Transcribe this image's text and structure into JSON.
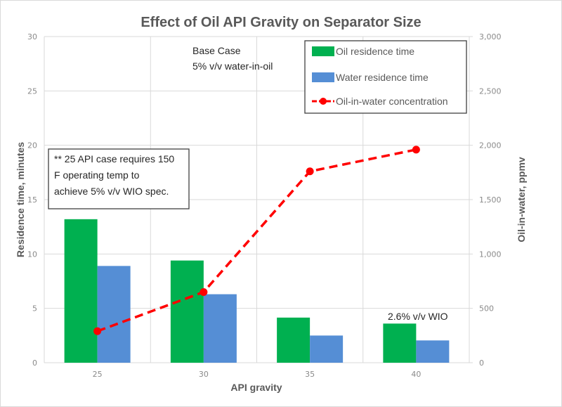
{
  "chart_data": {
    "type": "bar",
    "title": "Effect of Oil API Gravity on Separator Size",
    "xlabel": "API gravity",
    "ylabel": "Residence time, minutes",
    "y2label": "Oil-in-water, ppmv",
    "categories": [
      "25",
      "30",
      "35",
      "40"
    ],
    "ylim": [
      0,
      30
    ],
    "yticks": [
      "0",
      "5",
      "10",
      "15",
      "20",
      "25",
      "30"
    ],
    "y2lim": [
      0,
      3000
    ],
    "y2ticks": [
      "0",
      "500",
      "1,000",
      "1,500",
      "2,000",
      "2,500",
      "3,000"
    ],
    "grid": true,
    "legend_position": "top-right",
    "series": [
      {
        "name": "Oil residence time",
        "type": "bar",
        "axis": "left",
        "color": "#00b050",
        "values": [
          13.2,
          9.4,
          4.15,
          3.6
        ]
      },
      {
        "name": "Water residence time",
        "type": "bar",
        "axis": "left",
        "color": "#558ed5",
        "values": [
          8.9,
          6.3,
          2.5,
          2.05
        ]
      },
      {
        "name": "Oil-in-water concentration",
        "type": "line",
        "axis": "right",
        "color": "#ff0000",
        "style": "dashed",
        "marker": "circle",
        "values": [
          290,
          650,
          1760,
          1960
        ]
      }
    ],
    "annotations": {
      "base_case_line1": "Base Case",
      "base_case_line2": "5% v/v water-in-oil",
      "note_line1": "** 25 API case requires 150",
      "note_line2": "F operating temp to",
      "note_line3": "achieve 5% v/v WIO spec.",
      "wio_label": "2.6% v/v WIO"
    }
  }
}
